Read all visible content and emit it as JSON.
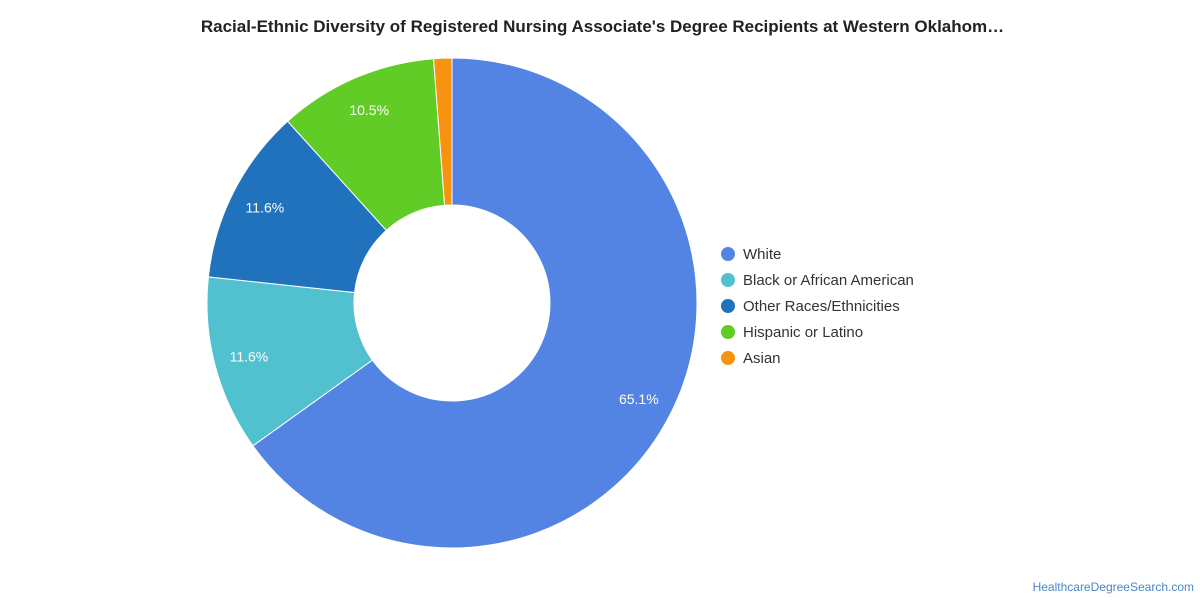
{
  "chart_data": {
    "type": "pie",
    "variant": "donut",
    "title": "Racial-Ethnic Diversity of Registered Nursing Associate's Degree Recipients at Western Oklahom…",
    "slices": [
      {
        "name": "White",
        "value": 65.1,
        "label": "65.1%",
        "color": "#5484e3"
      },
      {
        "name": "Black or African American",
        "value": 11.6,
        "label": "11.6%",
        "color": "#52c1cf"
      },
      {
        "name": "Other Races/Ethnicities",
        "value": 11.6,
        "label": "11.6%",
        "color": "#1f72bb"
      },
      {
        "name": "Hispanic or Latino",
        "value": 10.5,
        "label": "10.5%",
        "color": "#62cc26"
      },
      {
        "name": "Asian",
        "value": 1.2,
        "label": "",
        "color": "#f7930f"
      }
    ],
    "legend_position": "right"
  },
  "footer": {
    "credit": "HealthcareDegreeSearch.com"
  }
}
